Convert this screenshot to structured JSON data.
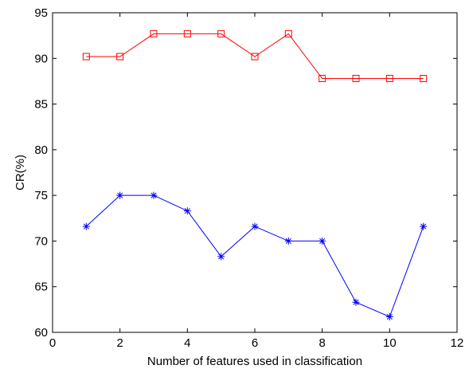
{
  "chart_data": {
    "type": "line",
    "title": "",
    "xlabel": "Number of features used in classification",
    "ylabel": "CR(%)",
    "xlim": [
      0,
      12
    ],
    "ylim": [
      60,
      95
    ],
    "xticks": [
      0,
      2,
      4,
      6,
      8,
      10,
      12
    ],
    "yticks": [
      60,
      65,
      70,
      75,
      80,
      85,
      90,
      95
    ],
    "grid": false,
    "legend": "none",
    "x": [
      1,
      2,
      3,
      4,
      5,
      6,
      7,
      8,
      9,
      10,
      11
    ],
    "series": [
      {
        "color": "#ff0000",
        "marker": "square",
        "values": [
          90.2,
          90.2,
          92.7,
          92.7,
          92.7,
          90.2,
          92.7,
          87.8,
          87.8,
          87.8,
          87.8
        ]
      },
      {
        "color": "#0000ff",
        "marker": "asterisk",
        "values": [
          71.6,
          75.0,
          75.0,
          73.3,
          68.3,
          71.6,
          70.0,
          70.0,
          63.3,
          61.7,
          71.6
        ]
      }
    ]
  }
}
